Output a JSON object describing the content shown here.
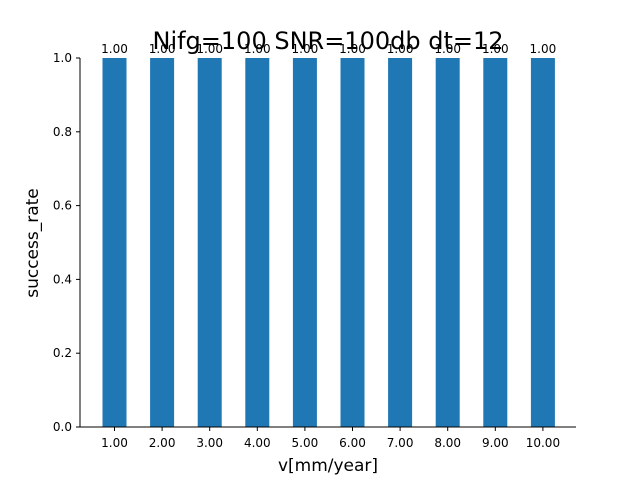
{
  "chart_data": {
    "type": "bar",
    "title": "Nifg=100 SNR=100db dt=12",
    "xlabel": "v[mm/year]",
    "ylabel": "success_rate",
    "categories": [
      "1.00",
      "2.00",
      "3.00",
      "4.00",
      "5.00",
      "6.00",
      "7.00",
      "8.00",
      "9.00",
      "10.00"
    ],
    "values": [
      1.0,
      1.0,
      1.0,
      1.0,
      1.0,
      1.0,
      1.0,
      1.0,
      1.0,
      1.0
    ],
    "data_labels": [
      "1.00",
      "1.00",
      "1.00",
      "1.00",
      "1.00",
      "1.00",
      "1.00",
      "1.00",
      "1.00",
      "1.00"
    ],
    "ylim": [
      0,
      1.0
    ],
    "yticks": [
      "0.0",
      "0.2",
      "0.4",
      "0.6",
      "0.8",
      "1.0"
    ],
    "grid": false,
    "bar_color": "#1f77b4"
  }
}
